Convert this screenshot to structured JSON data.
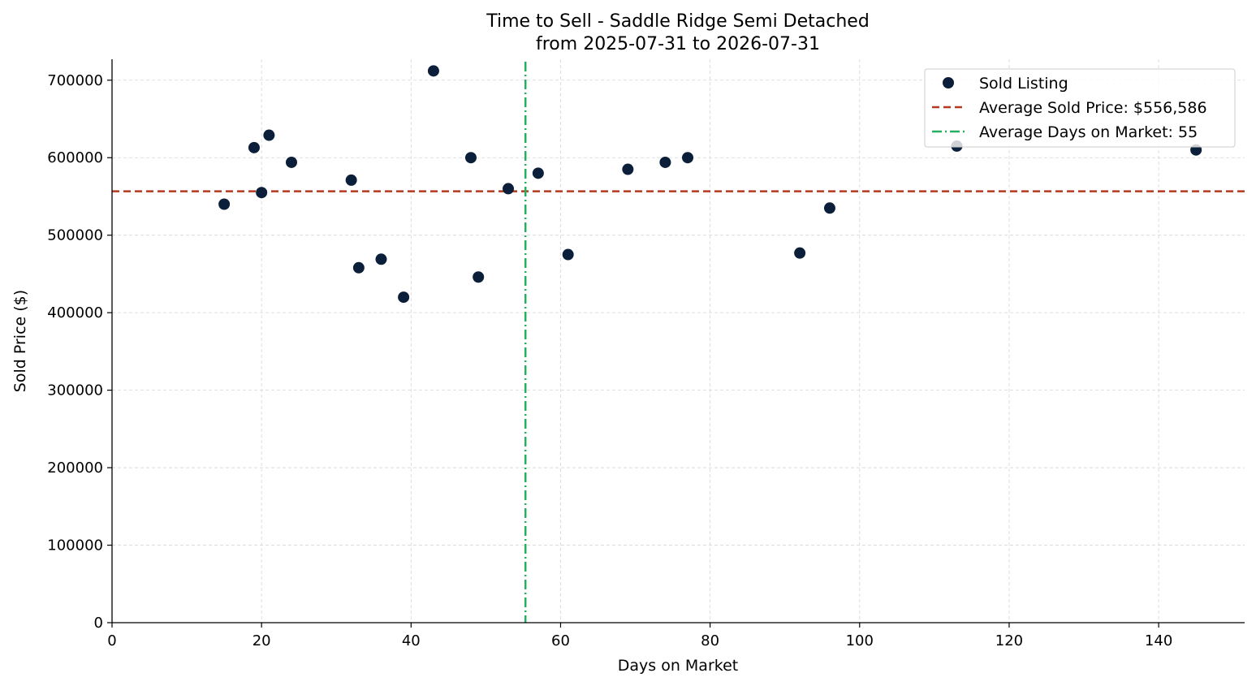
{
  "chart_data": {
    "type": "scatter",
    "title": "Time to Sell - Saddle Ridge Semi Detached",
    "subtitle": "from 2025-07-31 to 2026-07-31",
    "xlabel": "Days on Market",
    "ylabel": "Sold Price ($)",
    "xlim": [
      0,
      151.5
    ],
    "ylim": [
      0,
      727000
    ],
    "xticks": [
      0,
      20,
      40,
      60,
      80,
      100,
      120,
      140
    ],
    "yticks": [
      0,
      100000,
      200000,
      300000,
      400000,
      500000,
      600000,
      700000
    ],
    "grid": true,
    "legend_position": "top-right",
    "series": [
      {
        "name": "Sold Listing",
        "color": "#0b1f3a",
        "points": [
          {
            "x": 15,
            "y": 540000
          },
          {
            "x": 19,
            "y": 613000
          },
          {
            "x": 20,
            "y": 555000
          },
          {
            "x": 21,
            "y": 629000
          },
          {
            "x": 24,
            "y": 594000
          },
          {
            "x": 32,
            "y": 571000
          },
          {
            "x": 33,
            "y": 458000
          },
          {
            "x": 36,
            "y": 469000
          },
          {
            "x": 39,
            "y": 420000
          },
          {
            "x": 43,
            "y": 712000
          },
          {
            "x": 48,
            "y": 600000
          },
          {
            "x": 49,
            "y": 446000
          },
          {
            "x": 53,
            "y": 560000
          },
          {
            "x": 57,
            "y": 580000
          },
          {
            "x": 61,
            "y": 475000
          },
          {
            "x": 69,
            "y": 585000
          },
          {
            "x": 74,
            "y": 594000
          },
          {
            "x": 77,
            "y": 600000
          },
          {
            "x": 92,
            "y": 477000
          },
          {
            "x": 96,
            "y": 535000
          },
          {
            "x": 113,
            "y": 615000
          },
          {
            "x": 145,
            "y": 610000
          }
        ]
      }
    ],
    "reference_lines": [
      {
        "name": "Average Sold Price: $556,586",
        "orientation": "horizontal",
        "value": 556586,
        "color": "#b5391f",
        "style": "dashed"
      },
      {
        "name": "Average Days on Market: 55",
        "orientation": "vertical",
        "value": 55.3,
        "color": "#27ae60",
        "style": "dashdot"
      }
    ]
  }
}
